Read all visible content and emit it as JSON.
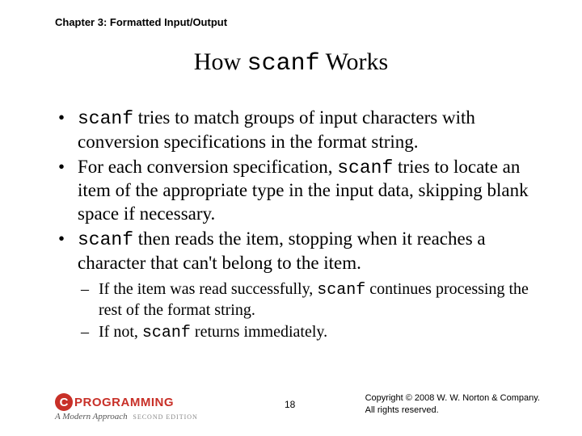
{
  "header": "Chapter 3: Formatted Input/Output",
  "title": {
    "pre": "How ",
    "code": "scanf",
    "post": " Works"
  },
  "bullets": [
    {
      "parts": [
        {
          "t": "code",
          "v": "scanf"
        },
        {
          "t": "text",
          "v": " tries to match groups of input characters with conversion specifications in the format string."
        }
      ]
    },
    {
      "parts": [
        {
          "t": "text",
          "v": "For each conversion specification, "
        },
        {
          "t": "code",
          "v": "scanf"
        },
        {
          "t": "text",
          "v": " tries to locate an item of the appropriate type in the input data, skipping blank space if necessary."
        }
      ]
    },
    {
      "parts": [
        {
          "t": "code",
          "v": "scanf"
        },
        {
          "t": "text",
          "v": " then reads the item, stopping when it reaches a character that can't belong to the item."
        }
      ]
    }
  ],
  "subbullets": [
    {
      "parts": [
        {
          "t": "text",
          "v": "If the item was read successfully, "
        },
        {
          "t": "code",
          "v": "scanf"
        },
        {
          "t": "text",
          "v": " continues processing the rest of the format string."
        }
      ]
    },
    {
      "parts": [
        {
          "t": "text",
          "v": "If not, "
        },
        {
          "t": "code",
          "v": "scanf"
        },
        {
          "t": "text",
          "v": " returns immediately."
        }
      ]
    }
  ],
  "logo": {
    "c": "C",
    "text": "PROGRAMMING",
    "sub": "A Modern Approach",
    "edition": "SECOND EDITION"
  },
  "page": "18",
  "copyright1": "Copyright © 2008 W. W. Norton & Company.",
  "copyright2": "All rights reserved."
}
